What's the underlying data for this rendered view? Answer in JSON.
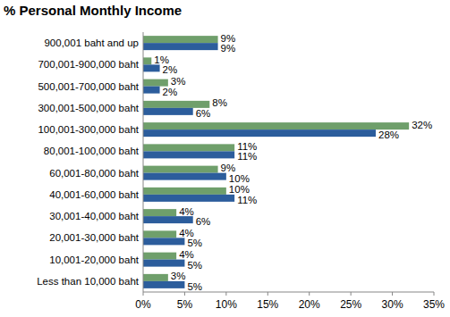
{
  "chart_data": {
    "type": "bar",
    "title": "% Personal Monthly Income",
    "orientation": "horizontal",
    "data_labels": true,
    "grid": false,
    "categories": [
      "900,001 baht and up",
      "700,001-900,000 baht",
      "500,001-700,000 baht",
      "300,001-500,000 baht",
      "100,001-300,000 baht",
      "80,001-100,000 baht",
      "60,001-80,000 baht",
      "40,001-60,000 baht",
      "30,001-40,000 baht",
      "20,001-30,000 baht",
      "10,001-20,000 baht",
      "Less than 10,000 baht"
    ],
    "series": [
      {
        "color": "#6f9f6b",
        "values": [
          9,
          1,
          3,
          8,
          32,
          11,
          9,
          10,
          4,
          4,
          4,
          3
        ],
        "value_labels": [
          "9%",
          "1%",
          "3%",
          "8%",
          "32%",
          "11%",
          "9%",
          "10%",
          "4%",
          "4%",
          "4%",
          "3%"
        ]
      },
      {
        "color": "#2c5d9c",
        "values": [
          9,
          2,
          2,
          6,
          28,
          11,
          10,
          11,
          6,
          5,
          5,
          5
        ],
        "value_labels": [
          "9%",
          "2%",
          "2%",
          "6%",
          "28%",
          "11%",
          "10%",
          "11%",
          "6%",
          "5%",
          "5%",
          "5%"
        ]
      }
    ],
    "xlim": [
      0,
      35
    ],
    "xticks": [
      {
        "value": 0,
        "label": "0%"
      },
      {
        "value": 5,
        "label": "5%"
      },
      {
        "value": 10,
        "label": "10%"
      },
      {
        "value": 15,
        "label": "15%"
      },
      {
        "value": 20,
        "label": "20%"
      },
      {
        "value": 25,
        "label": "25%"
      },
      {
        "value": 30,
        "label": "30%"
      },
      {
        "value": 35,
        "label": "35%"
      }
    ]
  }
}
